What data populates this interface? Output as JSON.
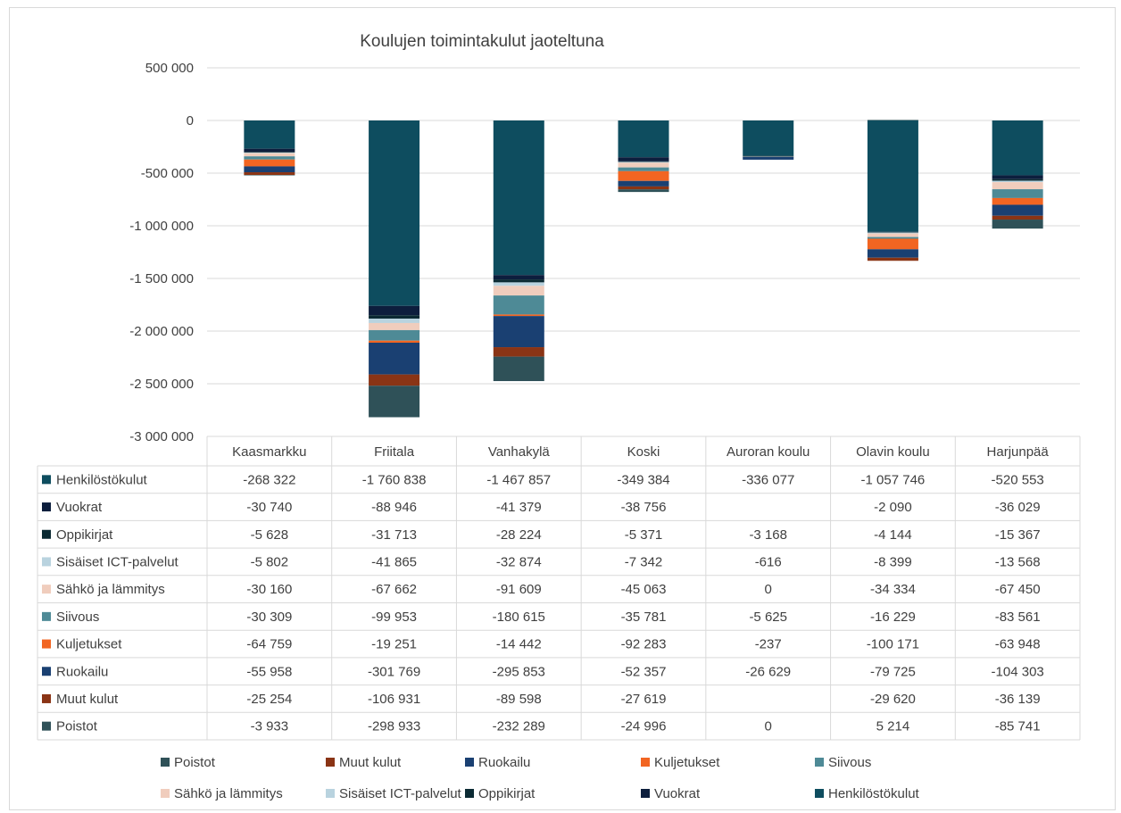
{
  "chart_data": {
    "type": "bar",
    "stacked": true,
    "title": "Koulujen toimintakulut jaoteltuna",
    "categories": [
      "Kaasmarkku",
      "Friitala",
      "Vanhakylä",
      "Koski",
      "Auroran koulu",
      "Olavin koulu",
      "Harjunpää"
    ],
    "ylim": [
      -3000000,
      500000
    ],
    "yticks": [
      500000,
      0,
      -500000,
      -1000000,
      -1500000,
      -2000000,
      -2500000,
      -3000000
    ],
    "ytick_labels": [
      "500 000",
      "0",
      "-500 000",
      "-1 000 000",
      "-1 500 000",
      "-2 000 000",
      "-2 500 000",
      "-3 000 000"
    ],
    "grid": true,
    "legend_position": "bottom",
    "data_table": true,
    "series": [
      {
        "name": "Henkilöstökulut",
        "color": "#0e4d5f",
        "values": [
          -268322,
          -1760838,
          -1467857,
          -349384,
          -336077,
          -1057746,
          -520553
        ],
        "labels": [
          "-268 322",
          "-1 760 838",
          "-1 467 857",
          "-349 384",
          "-336 077",
          "-1 057 746",
          "-520 553"
        ]
      },
      {
        "name": "Vuokrat",
        "color": "#0d1e3d",
        "values": [
          -30740,
          -88946,
          -41379,
          -38756,
          null,
          -2090,
          -36029
        ],
        "labels": [
          "-30 740",
          "-88 946",
          "-41 379",
          "-38 756",
          "",
          "-2 090",
          "-36 029"
        ]
      },
      {
        "name": "Oppikirjat",
        "color": "#0b2a33",
        "values": [
          -5628,
          -31713,
          -28224,
          -5371,
          -3168,
          -4144,
          -15367
        ],
        "labels": [
          "-5 628",
          "-31 713",
          "-28 224",
          "-5 371",
          "-3 168",
          "-4 144",
          "-15 367"
        ]
      },
      {
        "name": "Sisäiset ICT-palvelut",
        "color": "#b9d3df",
        "values": [
          -5802,
          -41865,
          -32874,
          -7342,
          -616,
          -8399,
          -13568
        ],
        "labels": [
          "-5 802",
          "-41 865",
          "-32 874",
          "-7 342",
          "-616",
          "-8 399",
          "-13 568"
        ]
      },
      {
        "name": "Sähkö ja lämmitys",
        "color": "#f0cdbd",
        "values": [
          -30160,
          -67662,
          -91609,
          -45063,
          0,
          -34334,
          -67450
        ],
        "labels": [
          "-30 160",
          "-67 662",
          "-91 609",
          "-45 063",
          "0",
          "-34 334",
          "-67 450"
        ]
      },
      {
        "name": "Siivous",
        "color": "#4e8a96",
        "values": [
          -30309,
          -99953,
          -180615,
          -35781,
          -5625,
          -16229,
          -83561
        ],
        "labels": [
          "-30 309",
          "-99 953",
          "-180 615",
          "-35 781",
          "-5 625",
          "-16 229",
          "-83 561"
        ]
      },
      {
        "name": "Kuljetukset",
        "color": "#f26522",
        "values": [
          -64759,
          -19251,
          -14442,
          -92283,
          -237,
          -100171,
          -63948
        ],
        "labels": [
          "-64 759",
          "-19 251",
          "-14 442",
          "-92 283",
          "-237",
          "-100 171",
          "-63 948"
        ]
      },
      {
        "name": "Ruokailu",
        "color": "#1a4072",
        "values": [
          -55958,
          -301769,
          -295853,
          -52357,
          -26629,
          -79725,
          -104303
        ],
        "labels": [
          "-55 958",
          "-301 769",
          "-295 853",
          "-52 357",
          "-26 629",
          "-79 725",
          "-104 303"
        ]
      },
      {
        "name": "Muut kulut",
        "color": "#8a3415",
        "values": [
          -25254,
          -106931,
          -89598,
          -27619,
          null,
          -29620,
          -36139
        ],
        "labels": [
          "-25 254",
          "-106 931",
          "-89 598",
          "-27 619",
          "",
          "-29 620",
          "-36 139"
        ]
      },
      {
        "name": "Poistot",
        "color": "#2f5158",
        "values": [
          -3933,
          -298933,
          -232289,
          -24996,
          0,
          5214,
          -85741
        ],
        "labels": [
          "-3 933",
          "-298 933",
          "-232 289",
          "-24 996",
          "0",
          "5 214",
          "-85 741"
        ]
      }
    ],
    "legend_order": [
      "Poistot",
      "Muut kulut",
      "Ruokailu",
      "Kuljetukset",
      "Siivous",
      "Sähkö ja lämmitys",
      "Sisäiset ICT-palvelut",
      "Oppikirjat",
      "Vuokrat",
      "Henkilöstökulut"
    ]
  }
}
